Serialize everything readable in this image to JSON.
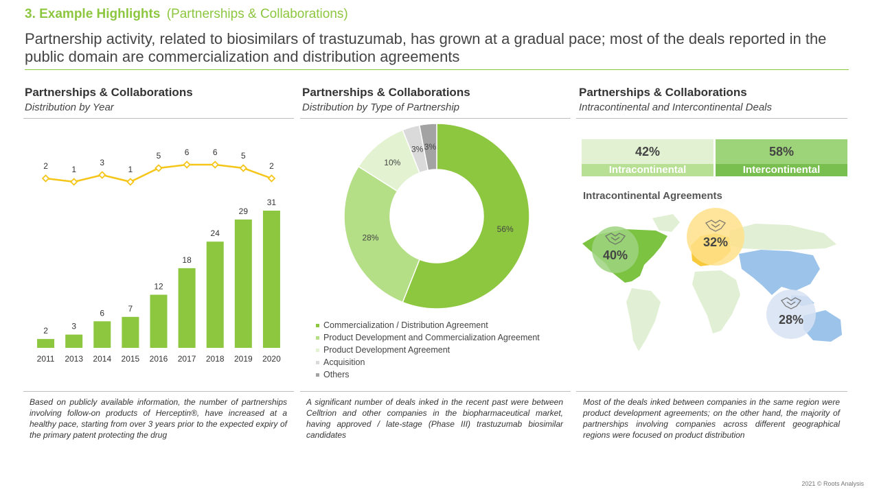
{
  "header": {
    "section_number": "3. Example Highlights",
    "section_topic": "(Partnerships & Collaborations)",
    "headline": "Partnership activity, related to biosimilars of trastuzumab, has grown at a gradual pace; most of the deals reported in the public domain are commercialization and distribution agreements"
  },
  "panels": [
    {
      "title": "Partnerships & Collaborations",
      "subtitle": "Distribution by Year",
      "note": "Based on publicly available information, the number of partnerships involving follow-on products of Herceptin®, have increased at a healthy pace, starting from over 3 years prior to the expected expiry of the primary patent protecting the drug"
    },
    {
      "title": "Partnerships & Collaborations",
      "subtitle": "Distribution by Type of Partnership",
      "note": "A significant number of deals inked in the recent past were between Celltrion and other companies in the biopharmaceutical market, having approved / late-stage (Phase III) trastuzumab biosimilar candidates"
    },
    {
      "title": "Partnerships & Collaborations",
      "subtitle": "Intracontinental and Intercontinental Deals",
      "note": "Most of the deals inked between companies in the same region were product development agreements; on the other hand, the majority of partnerships involving companies across different geographical regions were focused on product distribution"
    }
  ],
  "chart_data": [
    {
      "type": "bar",
      "categories": [
        "2011",
        "2013",
        "2014",
        "2015",
        "2016",
        "2017",
        "2018",
        "2019",
        "2020"
      ],
      "series": [
        {
          "values": [
            2,
            3,
            6,
            7,
            12,
            18,
            24,
            29,
            31
          ],
          "type": "bar",
          "color": "#8dc63f"
        },
        {
          "values": [
            2,
            1,
            3,
            1,
            5,
            6,
            6,
            5,
            2
          ],
          "type": "line",
          "color": "#f5c518"
        }
      ],
      "data_labels": true,
      "grid": false
    },
    {
      "type": "pie",
      "donut": true,
      "slices": [
        {
          "label": "Commercialization / Distribution Agreement",
          "value": 56,
          "display": "56%",
          "color": "#8dc63f"
        },
        {
          "label": "Product Development and Commercialization Agreement",
          "value": 28,
          "display": "28%",
          "color": "#b5df87"
        },
        {
          "label": "Product Development Agreement",
          "value": 10,
          "display": "10%",
          "color": "#e3f2d0"
        },
        {
          "label": "Acquisition",
          "value": 3,
          "display": "3%",
          "color": "#dadada"
        },
        {
          "label": "Others",
          "value": 3,
          "display": "3%",
          "color": "#a3a3a3"
        }
      ],
      "legend": "bottom"
    }
  ],
  "deals": {
    "intracontinental": {
      "pct": "42%",
      "label": "Intracontinental",
      "value": 42,
      "color_top": "#e2f1d2",
      "color_bottom": "#b8e094"
    },
    "intercontinental": {
      "pct": "58%",
      "label": "Intercontinental",
      "value": 58,
      "color_top": "#9ed479",
      "color_bottom": "#79bf4f"
    }
  },
  "map": {
    "title": "Intracontinental Agreements",
    "regions": [
      {
        "name": "North America",
        "pct": "40%",
        "icon": "handshake-icon",
        "color": "#9fd47f"
      },
      {
        "name": "Europe",
        "pct": "32%",
        "icon": "handshake-icon",
        "color": "#ffe08a"
      },
      {
        "name": "Asia-Pacific",
        "pct": "28%",
        "icon": "handshake-icon",
        "color": "#d7e2f2"
      }
    ]
  },
  "footer": {
    "copyright": "2021 © Roots Analysis"
  }
}
